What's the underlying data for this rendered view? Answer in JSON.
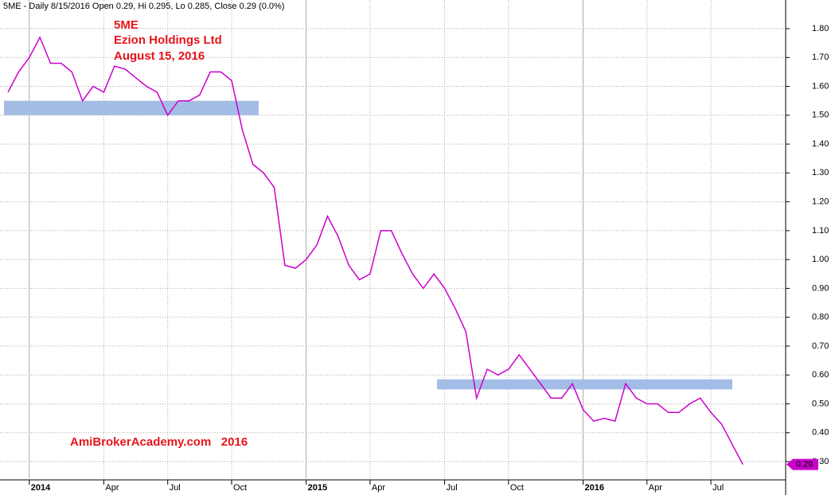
{
  "chart_data": {
    "type": "line",
    "header": "5ME - Daily 8/15/2016 Open 0.29, Hi 0.295, Lo 0.285, Close 0.29 (0.0%)",
    "annotations": [
      "5ME",
      "Ezion Holdings Ltd",
      "August 15, 2016",
      "AmiBrokerAcademy.com   2016"
    ],
    "categories": [
      null,
      null,
      "2014",
      null,
      null,
      null,
      null,
      null,
      null,
      "Apr",
      null,
      null,
      null,
      null,
      null,
      "Jul",
      null,
      null,
      null,
      null,
      null,
      "Oct",
      null,
      null,
      null,
      null,
      null,
      null,
      "2015",
      null,
      null,
      null,
      null,
      null,
      "Apr",
      null,
      null,
      null,
      null,
      null,
      null,
      "Jul",
      null,
      null,
      null,
      null,
      null,
      "Oct",
      null,
      null,
      null,
      null,
      null,
      null,
      "2016",
      null,
      null,
      null,
      null,
      null,
      "Apr",
      null,
      null,
      null,
      null,
      null,
      "Jul",
      null,
      null,
      null
    ],
    "values": [
      1.58,
      1.65,
      1.7,
      1.77,
      1.68,
      1.68,
      1.65,
      1.55,
      1.6,
      1.58,
      1.67,
      1.66,
      1.63,
      1.6,
      1.58,
      1.5,
      1.55,
      1.55,
      1.57,
      1.65,
      1.65,
      1.62,
      1.45,
      1.33,
      1.3,
      1.25,
      0.98,
      0.97,
      1.0,
      1.05,
      1.15,
      1.08,
      0.98,
      0.93,
      0.95,
      1.1,
      1.1,
      1.02,
      0.95,
      0.9,
      0.95,
      0.9,
      0.83,
      0.75,
      0.52,
      0.62,
      0.6,
      0.62,
      0.67,
      0.62,
      0.57,
      0.52,
      0.52,
      0.57,
      0.48,
      0.44,
      0.45,
      0.44,
      0.57,
      0.52,
      0.5,
      0.5,
      0.47,
      0.47,
      0.5,
      0.52,
      0.47,
      0.43,
      0.36,
      0.29
    ],
    "color": "#cc00cc",
    "bands": [
      {
        "low": 1.5,
        "high": 1.55
      },
      {
        "low": 0.55,
        "high": 0.585
      }
    ],
    "band_color": "#a4bde6",
    "ylim": [
      0.24,
      1.89
    ],
    "yticks": [
      {
        "value": 0.3,
        "label": "0.30"
      },
      {
        "value": 0.4,
        "label": "0.40"
      },
      {
        "value": 0.5,
        "label": "0.50"
      },
      {
        "value": 0.6,
        "label": "0.60"
      },
      {
        "value": 0.7,
        "label": "0.70"
      },
      {
        "value": 0.8,
        "label": "0.80"
      },
      {
        "value": 0.9,
        "label": "0.90"
      },
      {
        "value": 1.0,
        "label": "1.00"
      },
      {
        "value": 1.1,
        "label": "1.10"
      },
      {
        "value": 1.2,
        "label": "1.20"
      },
      {
        "value": 1.3,
        "label": "1.30"
      },
      {
        "value": 1.4,
        "label": "1.40"
      },
      {
        "value": 1.5,
        "label": "1.50"
      },
      {
        "value": 1.6,
        "label": "1.60"
      },
      {
        "value": 1.7,
        "label": "1.70"
      },
      {
        "value": 1.8,
        "label": "1.80"
      }
    ],
    "grid": true
  }
}
